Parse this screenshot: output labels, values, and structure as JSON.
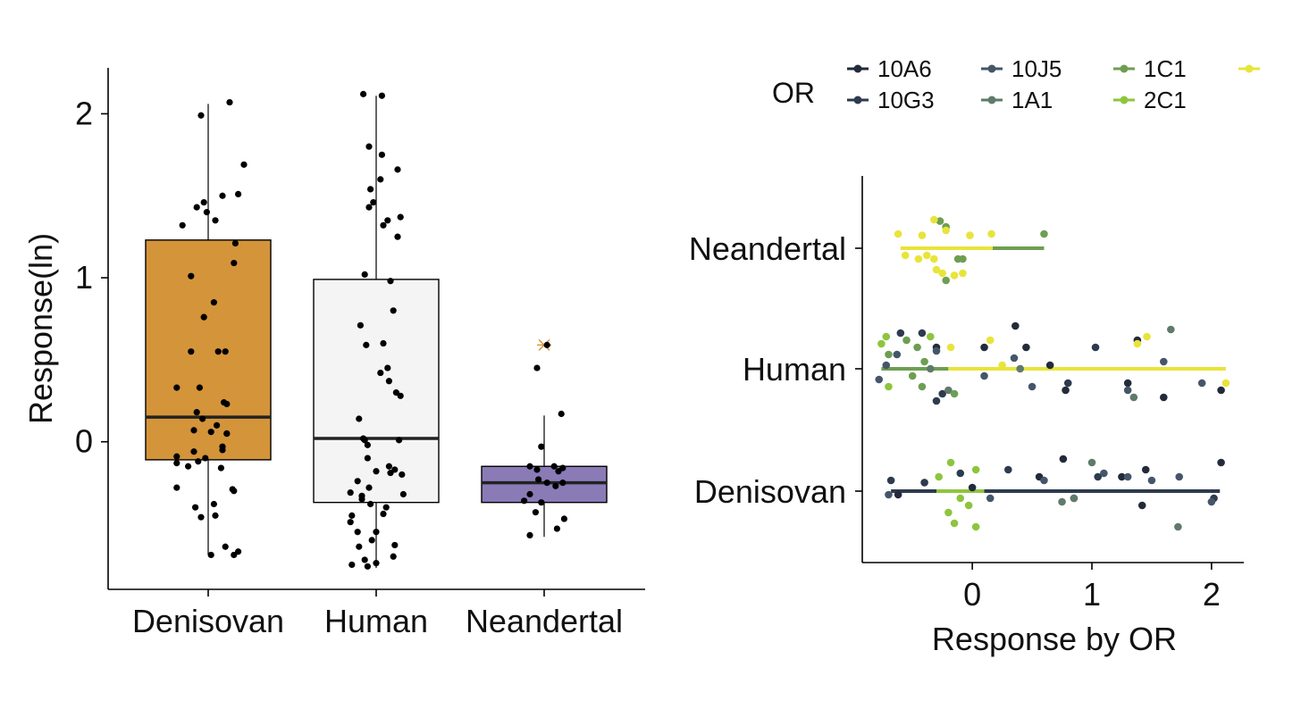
{
  "chart_data": [
    {
      "type": "box",
      "ylabel": "Response(ln)",
      "xlabel": "",
      "categories": [
        "Denisovan",
        "Human",
        "Neandertal"
      ],
      "yticks": [
        0,
        1,
        2
      ],
      "ylim": [
        -0.9,
        2.28
      ],
      "colors": {
        "Denisovan": "#D4943A",
        "Human": "#F4F4F4",
        "Neandertal": "#8A7BB7",
        "outlier_marker": "#D4943A"
      },
      "boxes": [
        {
          "category": "Denisovan",
          "whisker_low": -0.69,
          "q1": -0.11,
          "median": 0.15,
          "q3": 1.23,
          "whisker_high": 2.06,
          "outliers": []
        },
        {
          "category": "Human",
          "whisker_low": -0.77,
          "q1": -0.37,
          "median": 0.02,
          "q3": 0.99,
          "whisker_high": 2.11,
          "outliers": []
        },
        {
          "category": "Neandertal",
          "whisker_low": -0.58,
          "q1": -0.37,
          "median": -0.25,
          "q3": -0.15,
          "whisker_high": 0.16,
          "outliers": [
            0.59
          ]
        }
      ],
      "points": [
        {
          "category": "Denisovan",
          "jitter": [
            0.15,
            -0.05,
            -0.03,
            0.25,
            -0.08,
            0.21,
            0.1,
            0.05,
            0.19,
            -0.12,
            0.18,
            0.04,
            -0.03,
            0.07,
            -0.12,
            -0.22,
            0.13,
            0.11,
            -0.08,
            -0.04,
            0.06,
            0.02,
            0.13,
            0.13,
            0.1,
            -0.1,
            -0.1,
            -0.02,
            -0.22,
            -0.22,
            -0.07,
            0.09,
            0.17,
            -0.22,
            0.18,
            0.04,
            -0.09,
            0.05,
            -0.05,
            0.12,
            0.21,
            0.02,
            0.18,
            -0.14,
            0.1,
            -0.01,
            -0.18,
            -0.06,
            0.12
          ],
          "values": [
            2.07,
            1.99,
            1.46,
            1.69,
            1.43,
            1.51,
            1.5,
            1.35,
            1.21,
            1.01,
            1.09,
            0.85,
            0.76,
            0.55,
            0.55,
            0.33,
            0.23,
            0.24,
            0.18,
            0.14,
            0.1,
            0.06,
            0.05,
            0.05,
            -0.05,
            0.07,
            -0.06,
            -0.1,
            -0.09,
            -0.13,
            -0.12,
            -0.16,
            -0.29,
            -0.28,
            -0.3,
            -0.38,
            -0.4,
            -0.45,
            -0.46,
            -0.64,
            -0.67,
            -0.69,
            -0.69,
            -0.15,
            -0.03,
            1.4,
            1.32,
            0.33,
            0.55
          ],
          "color": "#000000"
        },
        {
          "category": "Human",
          "jitter": [
            -0.09,
            0.04,
            -0.05,
            0.04,
            0.03,
            -0.04,
            0.15,
            0.17,
            -0.05,
            -0.02,
            0.08,
            0.05,
            0.15,
            -0.08,
            0.1,
            0.12,
            -0.11,
            -0.07,
            0.05,
            0.08,
            0.03,
            0.09,
            0.14,
            0.17,
            -0.12,
            -0.08,
            0.16,
            -0.09,
            -0.06,
            -0.06,
            0.09,
            0.13,
            0.0,
            0.1,
            0.18,
            -0.13,
            -0.05,
            -0.18,
            0.19,
            -0.1,
            -0.04,
            0.07,
            0.05,
            -0.17,
            -0.18,
            0.0,
            -0.13,
            -0.03,
            0.13,
            -0.12,
            0.12,
            -0.08,
            -0.17,
            -0.06,
            0.0,
            -0.1
          ],
          "values": [
            2.12,
            2.11,
            1.8,
            1.75,
            1.6,
            1.54,
            1.66,
            1.37,
            1.43,
            1.46,
            1.35,
            1.32,
            1.25,
            1.02,
            0.98,
            0.8,
            0.71,
            0.59,
            0.6,
            0.45,
            0.42,
            0.37,
            0.3,
            0.28,
            0.14,
            0.01,
            0.01,
            0.02,
            -0.02,
            -0.1,
            -0.15,
            -0.17,
            -0.18,
            -0.19,
            -0.2,
            -0.24,
            -0.28,
            -0.31,
            -0.32,
            -0.35,
            -0.38,
            -0.4,
            -0.44,
            -0.45,
            -0.49,
            -0.55,
            -0.55,
            -0.6,
            -0.63,
            -0.64,
            -0.7,
            -0.72,
            -0.75,
            -0.76,
            -0.74,
            -0.33
          ],
          "color": "#000000"
        },
        {
          "category": "Neandertal",
          "jitter": [
            0.02,
            0.12,
            -0.05,
            -0.02,
            0.13,
            0.07,
            -0.1,
            0.1,
            -0.05,
            -0.04,
            0.02,
            0.08,
            0.13,
            -0.1,
            -0.14,
            -0.02,
            -0.06,
            0.09,
            0.14,
            -0.1
          ],
          "values": [
            0.59,
            0.17,
            0.45,
            -0.03,
            -0.16,
            -0.15,
            -0.15,
            -0.18,
            -0.17,
            -0.23,
            -0.25,
            -0.27,
            -0.25,
            -0.32,
            -0.36,
            -0.37,
            -0.43,
            -0.53,
            -0.47,
            -0.57
          ],
          "color": "#000000"
        }
      ]
    },
    {
      "type": "scatter",
      "xlabel": "Response by OR",
      "ylabel": "",
      "categories": [
        "Denisovan",
        "Human",
        "Neandertal"
      ],
      "xticks": [
        0,
        1,
        2
      ],
      "xlim": [
        -0.92,
        2.27
      ],
      "legend": {
        "title": "OR",
        "position": "top-right",
        "row1": [
          "10A6",
          "10J5",
          "1C1",
          ""
        ],
        "row2": [
          "10G3",
          "1A1",
          "2C1"
        ]
      },
      "series": [
        {
          "name": "10A6",
          "color": "#232B3B",
          "line": null,
          "points": [
            [
              "Human",
              0.1,
              0.3
            ],
            [
              "Human",
              0.45,
              0.3
            ],
            [
              "Human",
              0.65,
              0.05
            ],
            [
              "Human",
              1.38,
              0.4
            ],
            [
              "Human",
              0.36,
              0.6
            ],
            [
              "Human",
              1.3,
              -0.2
            ],
            [
              "Human",
              1.6,
              -0.4
            ],
            [
              "Human",
              2.08,
              -0.3
            ],
            [
              "Human",
              -0.3,
              0.3
            ],
            [
              "Human",
              0.78,
              -0.3
            ],
            [
              "Denisovan",
              2.08,
              0.4
            ],
            [
              "Denisovan",
              1.45,
              0.3
            ],
            [
              "Denisovan",
              1.25,
              0.2
            ],
            [
              "Denisovan",
              0.56,
              0.2
            ],
            [
              "Denisovan",
              -0.62,
              -0.05
            ],
            [
              "Denisovan",
              1.42,
              -0.2
            ],
            [
              "Denisovan",
              0.76,
              0.45
            ],
            [
              "Denisovan",
              0.0,
              0.05
            ]
          ]
        },
        {
          "name": "10G3",
          "color": "#2E3A4E",
          "line": {
            "category": "Denisovan",
            "from": -0.68,
            "to": 2.07
          },
          "points": [
            [
              "Human",
              -0.6,
              0.5
            ],
            [
              "Human",
              -0.42,
              0.5
            ],
            [
              "Human",
              -0.25,
              -0.35
            ],
            [
              "Human",
              -0.3,
              -0.45
            ],
            [
              "Human",
              0.8,
              -0.2
            ],
            [
              "Human",
              1.03,
              0.3
            ],
            [
              "Denisovan",
              -0.68,
              0.15
            ],
            [
              "Denisovan",
              -0.4,
              0.12
            ],
            [
              "Denisovan",
              -0.1,
              0.25
            ],
            [
              "Denisovan",
              0.3,
              0.3
            ],
            [
              "Denisovan",
              1.05,
              0.2
            ],
            [
              "Denisovan",
              2.02,
              -0.1
            ]
          ]
        },
        {
          "name": "10J5",
          "color": "#45566A",
          "line": null,
          "points": [
            [
              "Human",
              -0.78,
              -0.15
            ],
            [
              "Human",
              -0.63,
              0.2
            ],
            [
              "Human",
              -0.3,
              0.25
            ],
            [
              "Human",
              0.1,
              -0.1
            ],
            [
              "Human",
              0.5,
              -0.25
            ],
            [
              "Human",
              1.3,
              -0.3
            ],
            [
              "Human",
              1.92,
              -0.2
            ],
            [
              "Human",
              1.6,
              0.1
            ],
            [
              "Human",
              -0.72,
              0.05
            ],
            [
              "Human",
              0.35,
              0.15
            ],
            [
              "Denisovan",
              0.15,
              -0.1
            ],
            [
              "Denisovan",
              -0.7,
              -0.05
            ],
            [
              "Denisovan",
              1.1,
              0.25
            ],
            [
              "Denisovan",
              0.85,
              -0.1
            ],
            [
              "Denisovan",
              1.5,
              0.15
            ],
            [
              "Denisovan",
              1.73,
              0.2
            ],
            [
              "Denisovan",
              2.0,
              -0.15
            ],
            [
              "Denisovan",
              1.3,
              0.2
            ],
            [
              "Denisovan",
              0.6,
              0.15
            ]
          ]
        },
        {
          "name": "1A1",
          "color": "#5F7A6B",
          "line": null,
          "points": [
            [
              "Human",
              1.66,
              0.55
            ],
            [
              "Human",
              0.4,
              0.0
            ],
            [
              "Human",
              -0.35,
              0.0
            ],
            [
              "Human",
              -0.2,
              -0.3
            ],
            [
              "Human",
              1.35,
              -0.4
            ],
            [
              "Denisovan",
              1.0,
              0.4
            ],
            [
              "Denisovan",
              1.72,
              -0.5
            ],
            [
              "Denisovan",
              0.85,
              -0.1
            ],
            [
              "Denisovan",
              0.75,
              -0.15
            ]
          ]
        },
        {
          "name": "1C1",
          "color": "#6E9E52",
          "line": {
            "category": "Neandertal",
            "from": 0.17,
            "to": 0.6
          },
          "points": [
            [
              "Neandertal",
              0.6,
              0.2
            ],
            [
              "Neandertal",
              -0.22,
              0.3
            ],
            [
              "Neandertal",
              -0.27,
              0.38
            ],
            [
              "Neandertal",
              -0.12,
              -0.15
            ],
            [
              "Neandertal",
              -0.08,
              -0.15
            ],
            [
              "Neandertal",
              -0.22,
              -0.45
            ],
            [
              "Human",
              -0.55,
              0.4
            ],
            [
              "Human",
              -0.46,
              0.3
            ],
            [
              "Human",
              -0.7,
              0.2
            ],
            [
              "Human",
              -0.42,
              -0.25
            ],
            [
              "Human",
              -0.15,
              -0.35
            ],
            [
              "Human",
              -0.4,
              0.1
            ],
            [
              "Human",
              -0.5,
              -0.1
            ]
          ]
        },
        {
          "name": "2C1",
          "color": "#8DC53E",
          "line": {
            "category": "Denisovan",
            "from": -0.3,
            "to": 0.1
          },
          "points": [
            [
              "Denisovan",
              -0.28,
              0.2
            ],
            [
              "Denisovan",
              -0.18,
              0.4
            ],
            [
              "Denisovan",
              0.03,
              0.3
            ],
            [
              "Denisovan",
              -0.1,
              -0.1
            ],
            [
              "Denisovan",
              -0.03,
              -0.2
            ],
            [
              "Denisovan",
              -0.2,
              -0.3
            ],
            [
              "Denisovan",
              -0.15,
              -0.45
            ],
            [
              "Denisovan",
              0.03,
              -0.5
            ],
            [
              "Human",
              -0.76,
              0.35
            ],
            [
              "Human",
              -0.72,
              0.45
            ],
            [
              "Human",
              -0.7,
              -0.25
            ],
            [
              "Human",
              -0.35,
              0.45
            ]
          ]
        },
        {
          "name": "",
          "color": "#E8E43A",
          "line": {
            "category": "Neandertal",
            "from": -0.6,
            "to": 0.17
          },
          "points": [
            [
              "Neandertal",
              -0.32,
              0.4
            ],
            [
              "Neandertal",
              -0.42,
              0.18
            ],
            [
              "Neandertal",
              -0.02,
              0.18
            ],
            [
              "Neandertal",
              -0.62,
              0.2
            ],
            [
              "Neandertal",
              -0.56,
              -0.1
            ],
            [
              "Neandertal",
              -0.38,
              -0.1
            ],
            [
              "Neandertal",
              -0.32,
              -0.15
            ],
            [
              "Neandertal",
              -0.45,
              -0.15
            ],
            [
              "Neandertal",
              -0.3,
              -0.3
            ],
            [
              "Neandertal",
              -0.25,
              -0.35
            ],
            [
              "Neandertal",
              -0.15,
              -0.38
            ],
            [
              "Neandertal",
              -0.08,
              -0.35
            ],
            [
              "Neandertal",
              0.16,
              0.2
            ],
            [
              "Neandertal",
              -0.22,
              0.25
            ],
            [
              "Human",
              0.15,
              0.4
            ],
            [
              "Human",
              1.38,
              0.35
            ],
            [
              "Human",
              1.46,
              0.45
            ],
            [
              "Human",
              -0.18,
              0.3
            ],
            [
              "Human",
              2.12,
              -0.2
            ],
            [
              "Human",
              0.25,
              0.05
            ]
          ],
          "line_human": {
            "from": -0.76,
            "to": 2.12
          }
        }
      ],
      "extra_lines": [
        {
          "category": "Human",
          "color": "#6E9E52",
          "from": -0.76,
          "to": -0.2
        },
        {
          "category": "Human",
          "color": "#E8E43A",
          "from": -0.2,
          "to": 2.12
        }
      ]
    }
  ]
}
